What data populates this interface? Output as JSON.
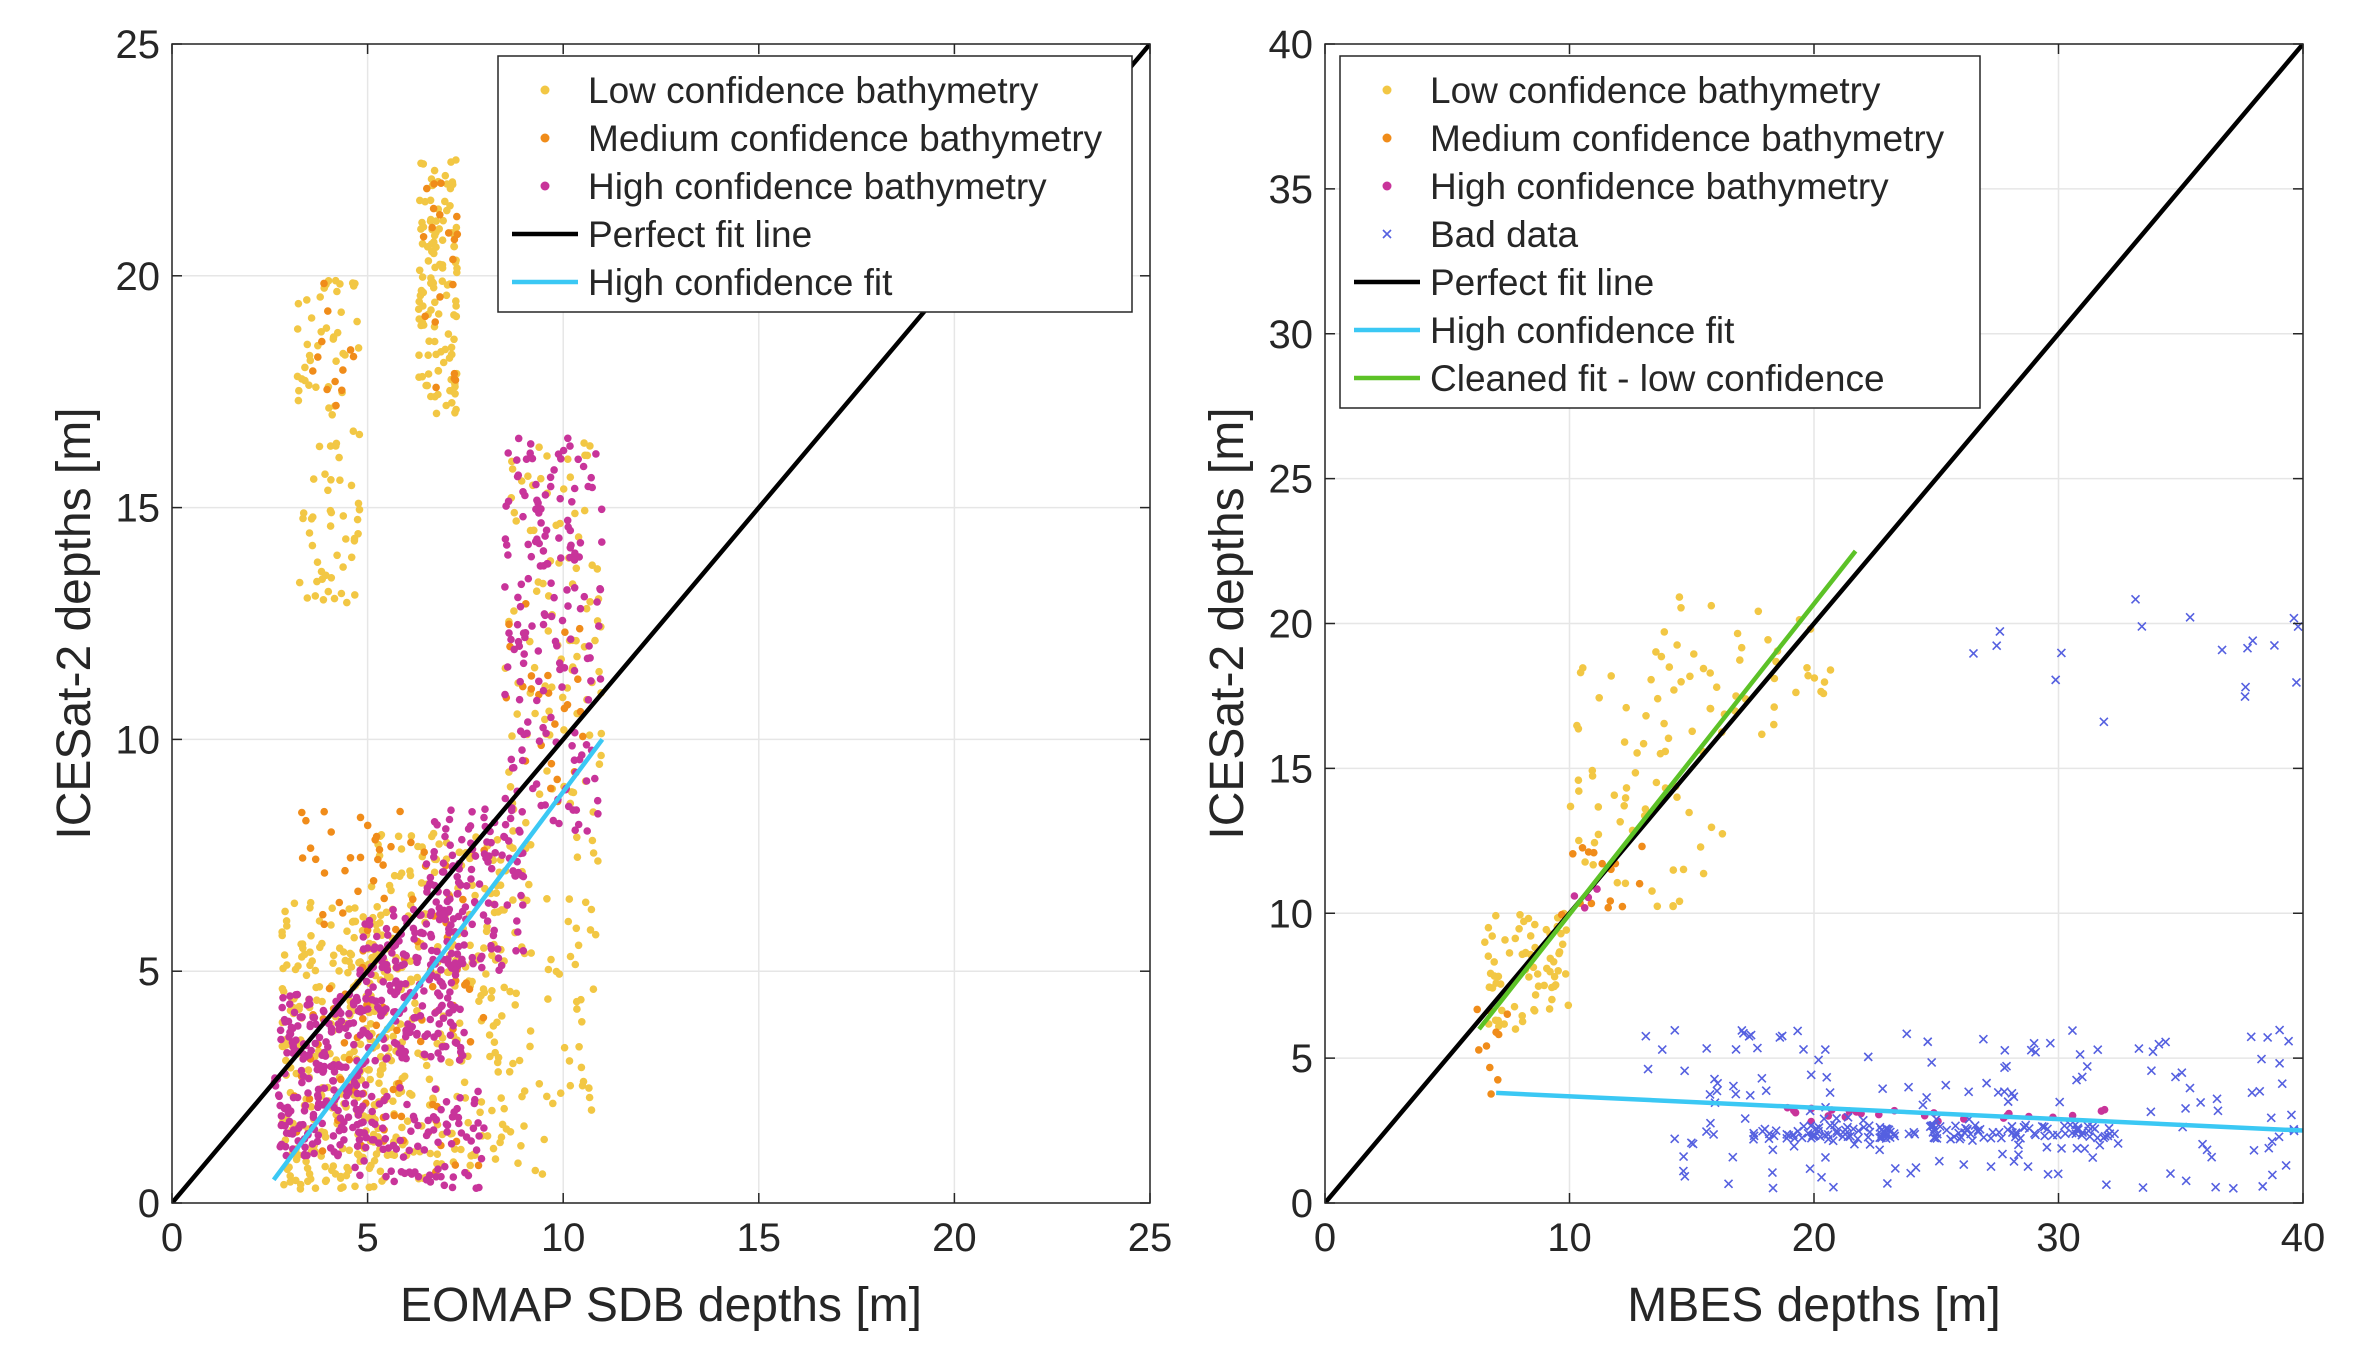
{
  "chart_data": [
    {
      "type": "scatter",
      "title": "",
      "xlabel": "EOMAP SDB depths [m]",
      "ylabel": "ICESat-2 depths [m]",
      "xlim": [
        0,
        25
      ],
      "ylim": [
        0,
        25
      ],
      "xticks": [
        0,
        5,
        10,
        15,
        20,
        25
      ],
      "yticks": [
        0,
        5,
        10,
        15,
        20,
        25
      ],
      "xtick_labels": [
        "0",
        "5",
        "10",
        "15",
        "20",
        "25"
      ],
      "ytick_labels": [
        "0",
        "5",
        "10",
        "15",
        "20",
        "25"
      ],
      "grid": true,
      "legend_position": "top-right",
      "series": [
        {
          "name": "Low confidence bathymetry",
          "kind": "points",
          "color": "#F2C744",
          "clusters": [
            {
              "x": [
                3.2,
                4.8
              ],
              "y": [
                12.5,
                20.0
              ],
              "n": 90
            },
            {
              "x": [
                6.3,
                7.3
              ],
              "y": [
                17.0,
                22.5
              ],
              "n": 120
            },
            {
              "x": [
                2.8,
                5.5
              ],
              "y": [
                0.3,
                6.5
              ],
              "n": 260
            },
            {
              "x": [
                5.0,
                8.5
              ],
              "y": [
                0.5,
                8.0
              ],
              "n": 260
            },
            {
              "x": [
                8.5,
                11.0
              ],
              "y": [
                0.5,
                16.5
              ],
              "n": 170
            }
          ]
        },
        {
          "name": "Medium confidence bathymetry",
          "kind": "points",
          "color": "#F08C1A",
          "clusters": [
            {
              "x": [
                3.5,
                4.8
              ],
              "y": [
                17.0,
                20.0
              ],
              "n": 12
            },
            {
              "x": [
                6.3,
                7.3
              ],
              "y": [
                17.5,
                22.0
              ],
              "n": 20
            },
            {
              "x": [
                3.0,
                8.0
              ],
              "y": [
                0.5,
                8.5
              ],
              "n": 110
            },
            {
              "x": [
                8.5,
                10.5
              ],
              "y": [
                8.0,
                13.0
              ],
              "n": 25
            }
          ]
        },
        {
          "name": "High confidence bathymetry",
          "kind": "points",
          "color": "#C8349A",
          "clusters": [
            {
              "x": [
                2.6,
                5.0
              ],
              "y": [
                1.0,
                4.5
              ],
              "n": 220
            },
            {
              "x": [
                4.8,
                7.5
              ],
              "y": [
                3.0,
                6.5
              ],
              "n": 200
            },
            {
              "x": [
                6.5,
                9.0
              ],
              "y": [
                5.0,
                8.5
              ],
              "n": 120
            },
            {
              "x": [
                8.5,
                11.0
              ],
              "y": [
                8.0,
                16.5
              ],
              "n": 170
            },
            {
              "x": [
                4.5,
                8.0
              ],
              "y": [
                0.3,
                2.5
              ],
              "n": 90
            }
          ]
        },
        {
          "name": "Perfect fit line",
          "kind": "line",
          "color": "#000000",
          "x": [
            0,
            25
          ],
          "y": [
            0,
            25
          ]
        },
        {
          "name": "High confidence fit",
          "kind": "line",
          "color": "#3BC8F4",
          "x": [
            2.6,
            11.0
          ],
          "y": [
            0.5,
            10.0
          ]
        }
      ]
    },
    {
      "type": "scatter",
      "title": "",
      "xlabel": "MBES depths [m]",
      "ylabel": "ICESat-2 depths [m]",
      "xlim": [
        0,
        40
      ],
      "ylim": [
        0,
        40
      ],
      "xticks": [
        0,
        10,
        20,
        30,
        40
      ],
      "yticks": [
        0,
        5,
        10,
        15,
        20,
        25,
        30,
        35,
        40
      ],
      "xtick_labels": [
        "0",
        "10",
        "20",
        "30",
        "40"
      ],
      "ytick_labels": [
        "0",
        "5",
        "10",
        "15",
        "20",
        "25",
        "30",
        "35",
        "40"
      ],
      "grid": true,
      "legend_position": "top-left",
      "series": [
        {
          "name": "Low confidence bathymetry",
          "kind": "points",
          "color": "#F2C744",
          "clusters": [
            {
              "x": [
                6.5,
                10.0
              ],
              "y": [
                6.0,
                10.0
              ],
              "n": 70
            },
            {
              "x": [
                10.0,
                16.5
              ],
              "y": [
                10.0,
                18.5
              ],
              "n": 60
            },
            {
              "x": [
                13.5,
                21.0
              ],
              "y": [
                16.0,
                21.0
              ],
              "n": 40
            }
          ]
        },
        {
          "name": "Medium confidence bathymetry",
          "kind": "points",
          "color": "#F08C1A",
          "clusters": [
            {
              "x": [
                6.2,
                7.5
              ],
              "y": [
                3.5,
                7.0
              ],
              "n": 10
            },
            {
              "x": [
                9.5,
                13.0
              ],
              "y": [
                9.5,
                12.5
              ],
              "n": 15
            }
          ]
        },
        {
          "name": "High confidence bathymetry",
          "kind": "points",
          "color": "#C8349A",
          "clusters": [
            {
              "x": [
                10.0,
                11.5
              ],
              "y": [
                10.0,
                11.0
              ],
              "n": 4
            },
            {
              "x": [
                18.0,
                32.0
              ],
              "y": [
                2.8,
                3.3
              ],
              "n": 25
            }
          ]
        },
        {
          "name": "Bad data",
          "kind": "crosses",
          "color": "#5560E0",
          "clusters": [
            {
              "x": [
                13.0,
                40.0
              ],
              "y": [
                0.5,
                6.0
              ],
              "n": 170
            },
            {
              "x": [
                17.5,
                32.5
              ],
              "y": [
                2.2,
                2.7
              ],
              "n": 130
            },
            {
              "x": [
                26.0,
                40.0
              ],
              "y": [
                16.5,
                21.0
              ],
              "n": 18
            }
          ]
        },
        {
          "name": "Perfect fit line",
          "kind": "line",
          "color": "#000000",
          "x": [
            0,
            40
          ],
          "y": [
            0,
            40
          ]
        },
        {
          "name": "High confidence fit",
          "kind": "line",
          "color": "#3BC8F4",
          "x": [
            7.0,
            40.0
          ],
          "y": [
            3.8,
            2.5
          ]
        },
        {
          "name": "Cleaned fit - low confidence",
          "kind": "line",
          "color": "#5CC227",
          "x": [
            6.3,
            21.7
          ],
          "y": [
            6.0,
            22.5
          ]
        }
      ]
    }
  ]
}
